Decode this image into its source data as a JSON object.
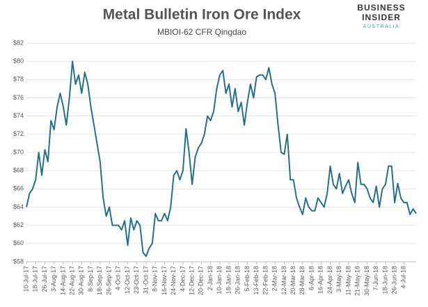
{
  "chart_data": {
    "type": "line",
    "title": "Metal Bulletin Iron Ore Index",
    "subtitle": "MBIOI-62 CFR Qingdao",
    "logo": [
      "BUSINESS",
      "INSIDER",
      "AUSTRALIA"
    ],
    "categories": [
      "10-Jul-17",
      null,
      null,
      "18-Jul-17",
      null,
      null,
      "26-Jul-17",
      null,
      null,
      "3-Aug-17",
      null,
      null,
      "14-Aug-17",
      null,
      null,
      "22-Aug-17",
      null,
      null,
      "30-Aug-17",
      null,
      null,
      "8-Sep-17",
      null,
      null,
      "18-Sep-17",
      null,
      null,
      "26-Sep-17",
      null,
      null,
      "4-Oct-17",
      null,
      null,
      "12-Oct-17",
      null,
      null,
      "23-Oct-17",
      null,
      null,
      "31-Oct-17",
      null,
      null,
      "8-Nov-17",
      null,
      null,
      "16-Nov-17",
      null,
      null,
      "24-Nov-17",
      null,
      null,
      "4-Dec-17",
      null,
      null,
      "12-Dec-17",
      null,
      null,
      "20-Dec-17",
      null,
      null,
      "2-Jan-18",
      null,
      null,
      "10-Jan-18",
      null,
      null,
      "18-Jan-18",
      null,
      null,
      "26-Jan-18",
      null,
      null,
      "5-Feb-18",
      null,
      null,
      "13-Feb-18",
      null,
      null,
      "22-Feb-18",
      null,
      null,
      "2-Mar-18",
      null,
      null,
      "12-Mar-18",
      null,
      null,
      "20-Mar-18",
      null,
      null,
      "28-Mar-18",
      null,
      null,
      "6-Apr-18",
      null,
      null,
      "16-Apr-18",
      null,
      null,
      "24-Apr-18",
      null,
      null,
      "3-May-18",
      null,
      null,
      "11-May-18",
      null,
      null,
      "21-May-18",
      null,
      null,
      "30-May-18",
      null,
      null,
      "7-Jun-18",
      null,
      null,
      "18-Jun-18",
      null,
      null,
      "26-Jun-18",
      null,
      null,
      "4-Jul-18",
      null,
      null,
      null,
      null
    ],
    "series": [
      {
        "name": "MBIOI-62 CFR Qingdao",
        "color": "#23708a",
        "values": [
          64.0,
          65.5,
          66,
          67,
          70,
          67.5,
          70.3,
          69,
          73.5,
          72.5,
          75,
          76.5,
          75,
          73,
          76,
          80,
          77.5,
          78.5,
          76.5,
          78.8,
          77.5,
          75,
          73,
          71,
          69,
          65,
          63,
          64,
          62,
          62,
          62,
          61.5,
          62.5,
          59.8,
          62.8,
          61.5,
          62.5,
          62,
          59,
          58.6,
          59.5,
          60,
          63.3,
          62.5,
          62.5,
          63.3,
          62.5,
          64,
          67.5,
          68,
          67,
          68,
          72.6,
          70,
          66.5,
          69.5,
          70.5,
          71,
          72,
          74,
          73.5,
          74.5,
          77,
          78.5,
          79,
          76.5,
          77.5,
          75,
          77,
          74.5,
          75.5,
          73,
          75.5,
          77.5,
          76,
          78.3,
          78.5,
          78.5,
          78,
          79.3,
          77.5,
          76.5,
          73,
          70,
          69.8,
          72,
          67,
          67,
          65,
          64,
          63.2,
          65,
          64,
          63.6,
          63.6,
          65,
          64.5,
          64,
          65.5,
          68.5,
          66.5,
          66,
          67.7,
          65.5,
          66.3,
          67,
          65.5,
          64.5,
          68.9,
          66.5,
          66.5,
          66,
          65,
          64.5,
          66.3,
          64,
          66,
          66.5,
          68.5,
          68.5,
          64.5,
          66.6,
          65,
          64.5,
          64.5,
          63.2,
          63.8,
          63.3
        ]
      }
    ],
    "ylim": [
      58,
      82
    ],
    "yticks": [
      {
        "value": 58,
        "label": "$58"
      },
      {
        "value": 60,
        "label": "$60"
      },
      {
        "value": 62,
        "label": "$62"
      },
      {
        "value": 64,
        "label": "$64"
      },
      {
        "value": 66,
        "label": "$66"
      },
      {
        "value": 68,
        "label": "$68"
      },
      {
        "value": 70,
        "label": "$70"
      },
      {
        "value": 72,
        "label": "$72"
      },
      {
        "value": 74,
        "label": "$74"
      },
      {
        "value": 76,
        "label": "$76"
      },
      {
        "value": 78,
        "label": "$78"
      },
      {
        "value": 80,
        "label": "$80"
      },
      {
        "value": 82,
        "label": "$82"
      }
    ],
    "grid": true
  }
}
